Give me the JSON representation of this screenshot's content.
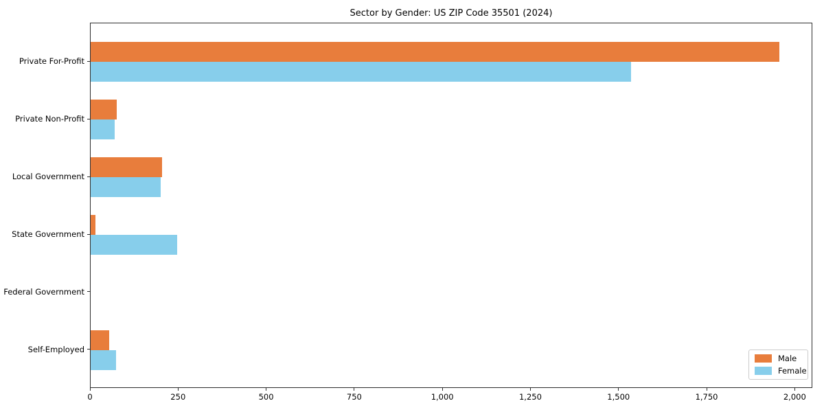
{
  "chart_data": {
    "type": "bar",
    "orientation": "horizontal",
    "title": "Sector by Gender: US ZIP Code 35501 (2024)",
    "categories": [
      "Private For-Profit",
      "Private Non-Profit",
      "Local Government",
      "State Government",
      "Federal Government",
      "Self-Employed"
    ],
    "series": [
      {
        "name": "Male",
        "color": "#e87d3c",
        "values": [
          1955,
          75,
          203,
          14,
          0,
          53
        ]
      },
      {
        "name": "Female",
        "color": "#87ceeb",
        "values": [
          1533,
          69,
          199,
          245,
          0,
          73
        ]
      }
    ],
    "xlabel": "",
    "ylabel": "",
    "xlim": [
      0,
      2050
    ],
    "xticks": [
      0,
      250,
      500,
      750,
      1000,
      1250,
      1500,
      1750,
      2000
    ],
    "xtick_labels": [
      "0",
      "250",
      "500",
      "750",
      "1,000",
      "1,250",
      "1,500",
      "1,750",
      "2,000"
    ],
    "grid": false,
    "legend_position": "lower right"
  }
}
